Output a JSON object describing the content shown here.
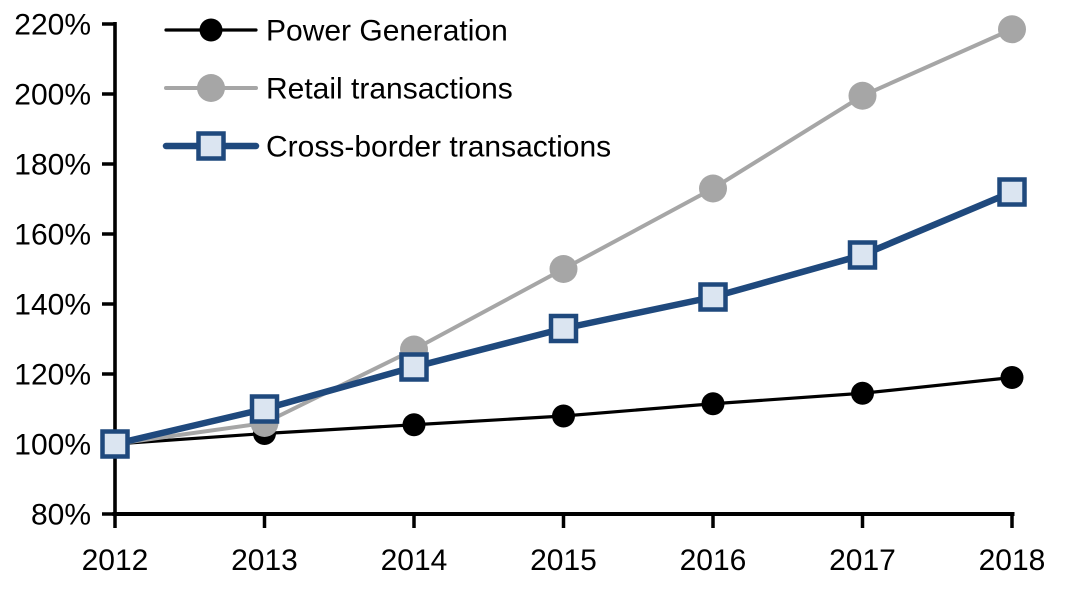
{
  "chart_data": {
    "type": "line",
    "title": "",
    "xlabel": "",
    "ylabel": "",
    "categories": [
      "2012",
      "2013",
      "2014",
      "2015",
      "2016",
      "2017",
      "2018"
    ],
    "series": [
      {
        "name": "Power Generation",
        "color": "#000000",
        "marker": "circle",
        "marker_fill": "#000000",
        "marker_size": 23,
        "line_width": 3.2,
        "values": [
          100,
          103,
          105.5,
          108,
          111.5,
          114.5,
          119
        ]
      },
      {
        "name": "Retail transactions",
        "color": "#A6A6A6",
        "marker": "circle",
        "marker_fill": "#A6A6A6",
        "marker_size": 28,
        "line_width": 4,
        "values": [
          100,
          106,
          127,
          150,
          173,
          199.5,
          218.5
        ]
      },
      {
        "name": "Cross-border transactions",
        "color": "#1F497D",
        "marker": "square",
        "marker_fill": "#DBE5F1",
        "marker_size": 25,
        "marker_stroke_width": 4.5,
        "line_width": 6.5,
        "values": [
          100,
          110,
          122,
          133,
          142,
          154,
          172
        ]
      }
    ],
    "ylim": [
      80,
      220
    ],
    "ytick_step": 20,
    "ytick_labels": [
      "80%",
      "100%",
      "120%",
      "140%",
      "160%",
      "180%",
      "200%",
      "220%"
    ],
    "xtick_labels": [
      "2012",
      "2013",
      "2014",
      "2015",
      "2016",
      "2017",
      "2018"
    ],
    "grid": false,
    "legend_position": "top-left-inside",
    "legend_entries": [
      "Power Generation",
      "Retail transactions",
      "Cross-border transactions"
    ],
    "axis_color": "#000000"
  }
}
